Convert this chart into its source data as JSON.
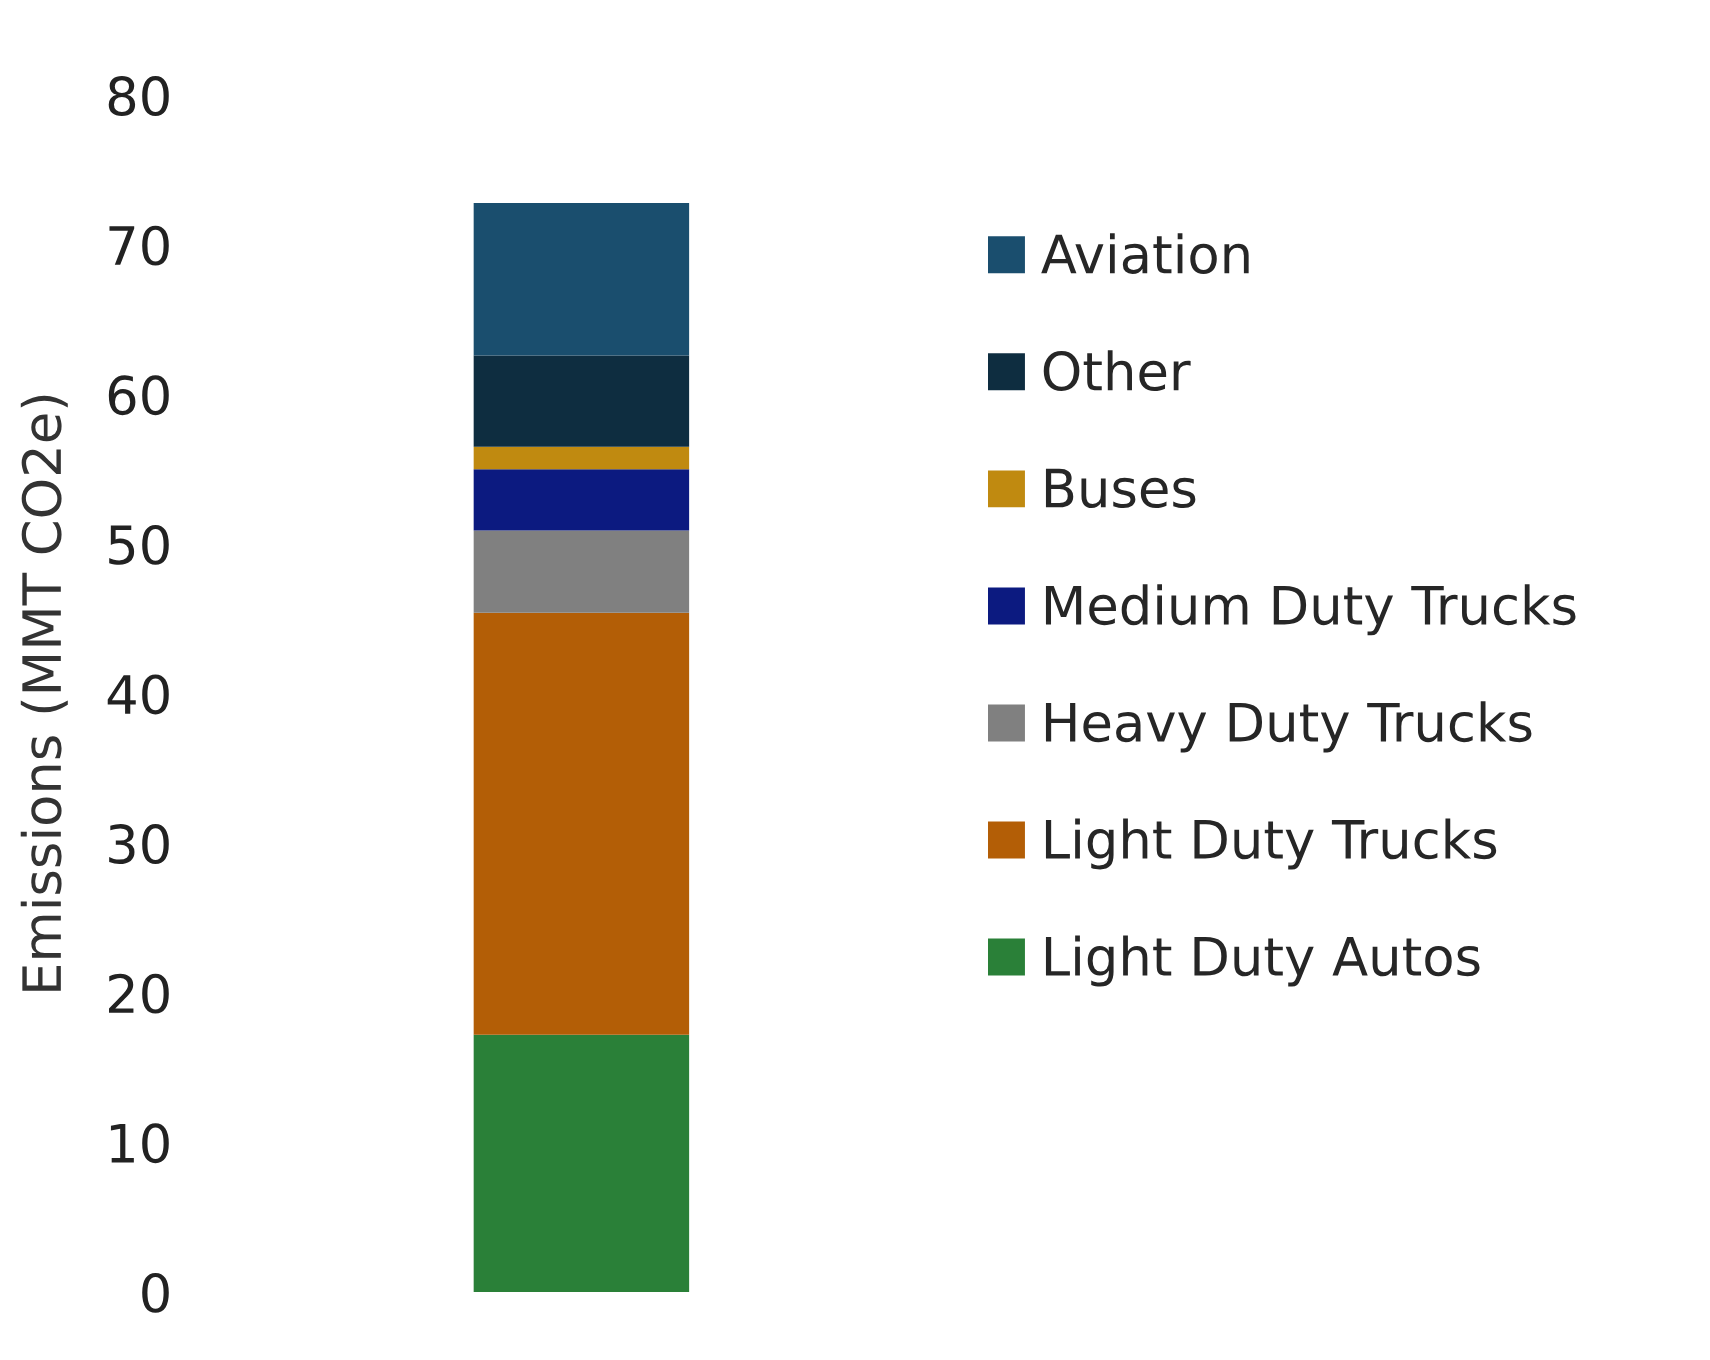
{
  "chart_data": {
    "type": "bar",
    "stacked": true,
    "ylabel": "Emissions (MMT CO2e)",
    "categories": [
      null
    ],
    "series": [
      {
        "name": "Light Duty Autos",
        "color": "#2a8038",
        "values": [
          17.2
        ]
      },
      {
        "name": "Light Duty Trucks",
        "color": "#b35e06",
        "values": [
          28.2
        ]
      },
      {
        "name": "Heavy Duty Trucks",
        "color": "#808080",
        "values": [
          5.5
        ]
      },
      {
        "name": "Medium Duty Trucks",
        "color": "#0c1a80",
        "values": [
          4.1
        ]
      },
      {
        "name": "Buses",
        "color": "#c08a10",
        "values": [
          1.5
        ]
      },
      {
        "name": "Other",
        "color": "#0e2d40",
        "values": [
          6.1
        ]
      },
      {
        "name": "Aviation",
        "color": "#1a4e6e",
        "values": [
          10.2
        ]
      }
    ],
    "ylim": [
      0,
      80
    ],
    "yticks": [
      0,
      10,
      20,
      30,
      40,
      50,
      60,
      70,
      80
    ],
    "legend": "right",
    "grid": false
  }
}
